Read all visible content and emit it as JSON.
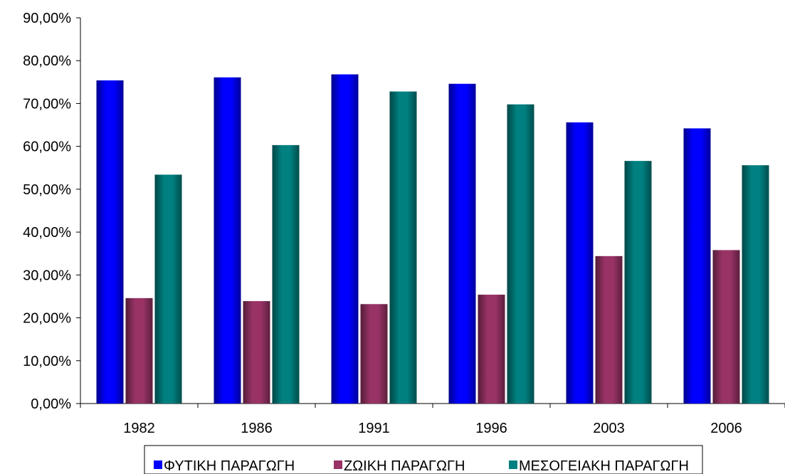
{
  "chart_data": {
    "type": "bar",
    "categories": [
      "1982",
      "1986",
      "1991",
      "1996",
      "2003",
      "2006"
    ],
    "series": [
      {
        "name": "ΦΥΤΙΚΗ ΠΑΡΑΓΩΓΗ",
        "color": "#0000ff",
        "values": [
          75.4,
          76.1,
          76.8,
          74.6,
          65.6,
          64.2
        ]
      },
      {
        "name": "ΖΩΙΚΗ ΠΑΡΑΓΩΓΗ",
        "color": "#993366",
        "values": [
          24.6,
          23.9,
          23.2,
          25.4,
          34.4,
          35.8
        ]
      },
      {
        "name": "ΜΕΣΟΓΕΙΑΚΗ ΠΑΡΑΓΩΓΗ",
        "color": "#008080",
        "values": [
          53.4,
          60.3,
          72.8,
          69.8,
          56.6,
          55.6
        ]
      }
    ],
    "y_ticks": [
      "0,00%",
      "10,00%",
      "20,00%",
      "30,00%",
      "40,00%",
      "50,00%",
      "60,00%",
      "70,00%",
      "80,00%",
      "90,00%"
    ],
    "ylim": [
      0,
      90
    ],
    "grid": false,
    "legend_position": "bottom",
    "title": "",
    "xlabel": "",
    "ylabel": ""
  }
}
